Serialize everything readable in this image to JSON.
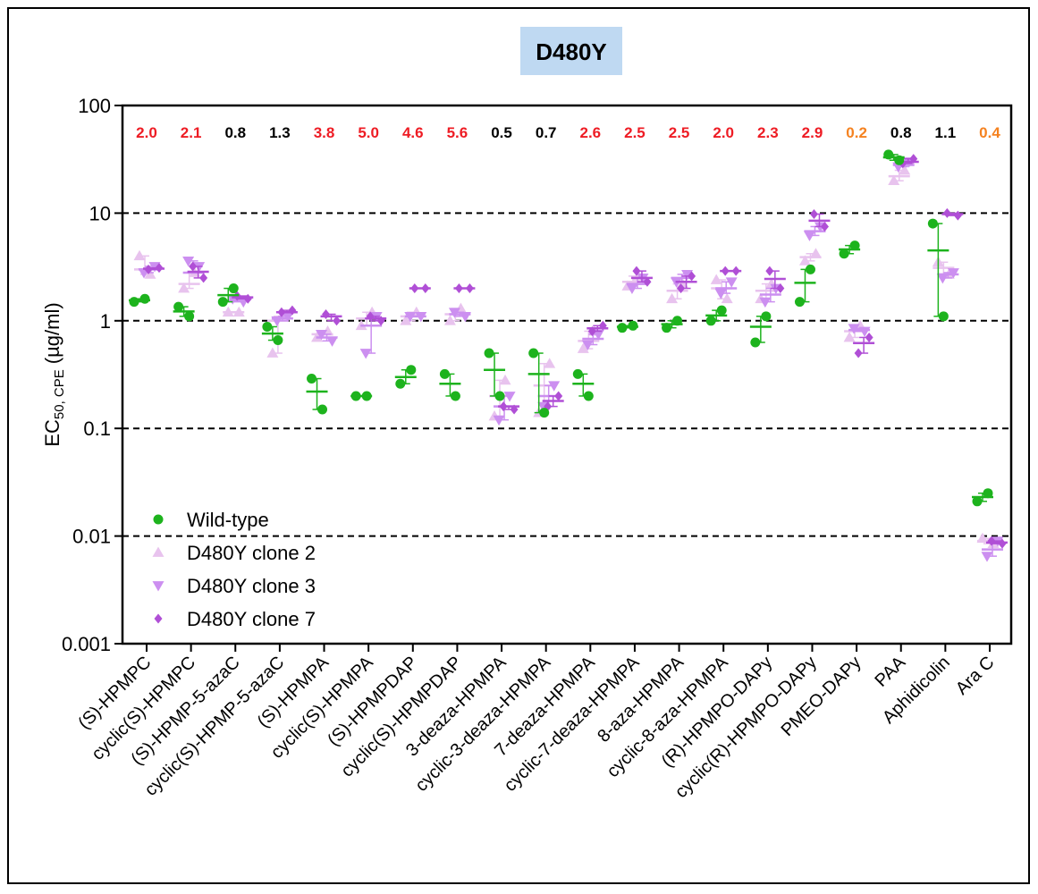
{
  "chart_data": {
    "type": "scatter",
    "title": "D480Y",
    "ylabel_main": "EC",
    "ylabel_sub": "50, CPE",
    "ylabel_unit": "(µg/ml)",
    "y_scale": "log",
    "ylim": [
      0.001,
      100
    ],
    "yticks": [
      {
        "value": 100,
        "label": "100"
      },
      {
        "value": 10,
        "label": "10"
      },
      {
        "value": 1,
        "label": "1"
      },
      {
        "value": 0.1,
        "label": "0.1"
      },
      {
        "value": 0.01,
        "label": "0.01"
      },
      {
        "value": 0.001,
        "label": "0.001"
      }
    ],
    "gridlines": [
      10,
      1,
      0.1,
      0.01
    ],
    "categories": [
      "(S)-HPMPC",
      "cyclic(S)-HPMPC",
      "(S)-HPMP-5-azaC",
      "cyclic(S)-HPMP-5-azaC",
      "(S)-HPMPA",
      "cyclic(S)-HPMPA",
      "(S)-HPMPDAP",
      "cyclic(S)-HPMPDAP",
      "3-deaza-HPMPA",
      "cyclic-3-deaza-HPMPA",
      "7-deaza-HPMPA",
      "cyclic-7-deaza-HPMPA",
      "8-aza-HPMPA",
      "cyclic-8-aza-HPMPA",
      "(R)-HPMPO-DAPy",
      "cyclic(R)-HPMPO-DAPy",
      "PMEO-DAPy",
      "PAA",
      "Aphidicolin",
      "Ara C"
    ],
    "fold_changes": [
      {
        "label": "2.0",
        "color": "#ee1c24"
      },
      {
        "label": "2.1",
        "color": "#ee1c24"
      },
      {
        "label": "0.8",
        "color": "#000000"
      },
      {
        "label": "1.3",
        "color": "#000000"
      },
      {
        "label": "3.8",
        "color": "#ee1c24"
      },
      {
        "label": "5.0",
        "color": "#ee1c24"
      },
      {
        "label": "4.6",
        "color": "#ee1c24"
      },
      {
        "label": "5.6",
        "color": "#ee1c24"
      },
      {
        "label": "0.5",
        "color": "#000000"
      },
      {
        "label": "0.7",
        "color": "#000000"
      },
      {
        "label": "2.6",
        "color": "#ee1c24"
      },
      {
        "label": "2.5",
        "color": "#ee1c24"
      },
      {
        "label": "2.5",
        "color": "#ee1c24"
      },
      {
        "label": "2.0",
        "color": "#ee1c24"
      },
      {
        "label": "2.3",
        "color": "#ee1c24"
      },
      {
        "label": "2.9",
        "color": "#ee1c24"
      },
      {
        "label": "0.2",
        "color": "#f58220"
      },
      {
        "label": "0.8",
        "color": "#000000"
      },
      {
        "label": "1.1",
        "color": "#000000"
      },
      {
        "label": "0.4",
        "color": "#f58220"
      }
    ],
    "series": [
      {
        "name": "Wild-type",
        "marker": "circle",
        "color": "#1db31d",
        "values": [
          [
            1.5,
            1.6
          ],
          [
            1.35,
            1.1
          ],
          [
            1.5,
            2.0
          ],
          [
            0.88,
            0.66
          ],
          [
            0.29,
            0.15
          ],
          [
            0.2,
            0.2
          ],
          [
            0.26,
            0.35
          ],
          [
            0.32,
            0.2
          ],
          [
            0.5,
            0.2
          ],
          [
            0.5,
            0.14
          ],
          [
            0.32,
            0.2
          ],
          [
            0.86,
            0.9
          ],
          [
            0.86,
            1.0
          ],
          [
            1.0,
            1.25
          ],
          [
            0.63,
            1.1
          ],
          [
            1.5,
            3.0
          ],
          [
            4.2,
            5.0
          ],
          [
            35,
            31
          ],
          [
            8.0,
            1.1
          ],
          [
            0.021,
            0.025
          ]
        ],
        "means": [
          1.55,
          1.22,
          1.73,
          0.76,
          0.22,
          0.2,
          0.3,
          0.26,
          0.35,
          0.32,
          0.26,
          0.88,
          0.93,
          1.12,
          0.88,
          2.25,
          4.6,
          33,
          4.5,
          0.023
        ]
      },
      {
        "name": "D480Y clone 2",
        "marker": "triangle-up",
        "color": "#e8c3ee",
        "values": [
          [
            4.0,
            2.7
          ],
          [
            2.0,
            2.8
          ],
          [
            1.2,
            1.2
          ],
          [
            0.5,
            1.1
          ],
          [
            0.7,
            0.8
          ],
          [
            0.9,
            1.2
          ],
          [
            1.0,
            1.2
          ],
          [
            1.0,
            1.3
          ],
          [
            0.13,
            0.28
          ],
          [
            0.14,
            0.4
          ],
          [
            0.55,
            0.8
          ],
          [
            2.1,
            2.6
          ],
          [
            1.6,
            2.2
          ],
          [
            2.4,
            1.6
          ],
          [
            1.6,
            2.2
          ],
          [
            3.6,
            4.2
          ],
          [
            0.7,
            0.9
          ],
          [
            20,
            25
          ],
          [
            3.5,
            2.7
          ],
          [
            0.0095,
            0.0085
          ]
        ],
        "means": [
          3.0,
          2.2,
          1.2,
          1.0,
          0.75,
          1.05,
          1.1,
          1.15,
          0.2,
          0.25,
          0.65,
          2.3,
          1.9,
          2.0,
          1.9,
          3.9,
          0.8,
          22,
          3.1,
          0.009
        ]
      },
      {
        "name": "D480Y clone 3",
        "marker": "triangle-down",
        "color": "#cc8ff0",
        "values": [
          [
            2.8,
            3.2
          ],
          [
            3.6,
            3.2
          ],
          [
            1.6,
            1.5
          ],
          [
            1.0,
            1.1
          ],
          [
            0.75,
            0.65
          ],
          [
            0.5,
            1.1
          ],
          [
            1.1,
            1.1
          ],
          [
            1.2,
            1.1
          ],
          [
            0.12,
            0.2
          ],
          [
            0.16,
            0.25
          ],
          [
            0.6,
            0.75
          ],
          [
            2.0,
            2.5
          ],
          [
            2.3,
            2.7
          ],
          [
            1.8,
            2.3
          ],
          [
            1.5,
            2.0
          ],
          [
            6.2,
            7.5
          ],
          [
            0.85,
            0.8
          ],
          [
            27,
            30
          ],
          [
            2.5,
            2.8
          ],
          [
            0.0065,
            0.009
          ]
        ],
        "means": [
          3.0,
          2.8,
          1.55,
          1.05,
          0.7,
          0.9,
          1.1,
          1.15,
          0.16,
          0.2,
          0.68,
          2.2,
          2.5,
          2.0,
          1.75,
          6.8,
          0.82,
          28,
          2.7,
          0.0075
        ]
      },
      {
        "name": "D480Y clone 7",
        "marker": "diamond",
        "color": "#b04fd6",
        "values": [
          [
            3.0,
            3.1
          ],
          [
            3.2,
            2.5
          ],
          [
            1.7,
            1.6
          ],
          [
            1.2,
            1.25
          ],
          [
            1.15,
            1.0
          ],
          [
            1.1,
            1.0
          ],
          [
            2.0,
            2.0
          ],
          [
            2.0,
            2.0
          ],
          [
            0.16,
            0.15
          ],
          [
            0.16,
            0.2
          ],
          [
            0.8,
            0.9
          ],
          [
            2.9,
            2.3
          ],
          [
            2.0,
            2.6
          ],
          [
            2.9,
            2.9
          ],
          [
            2.9,
            2.0
          ],
          [
            9.8,
            7.5
          ],
          [
            0.5,
            0.7
          ],
          [
            29,
            32
          ],
          [
            10,
            9.5
          ],
          [
            0.009,
            0.0085
          ]
        ],
        "means": [
          3.05,
          2.85,
          1.65,
          1.2,
          1.1,
          1.05,
          2.0,
          2.0,
          0.16,
          0.18,
          0.85,
          2.5,
          2.3,
          2.9,
          2.45,
          8.5,
          0.62,
          30,
          9.8,
          0.0087
        ]
      }
    ],
    "legend_position": "bottom-left"
  }
}
